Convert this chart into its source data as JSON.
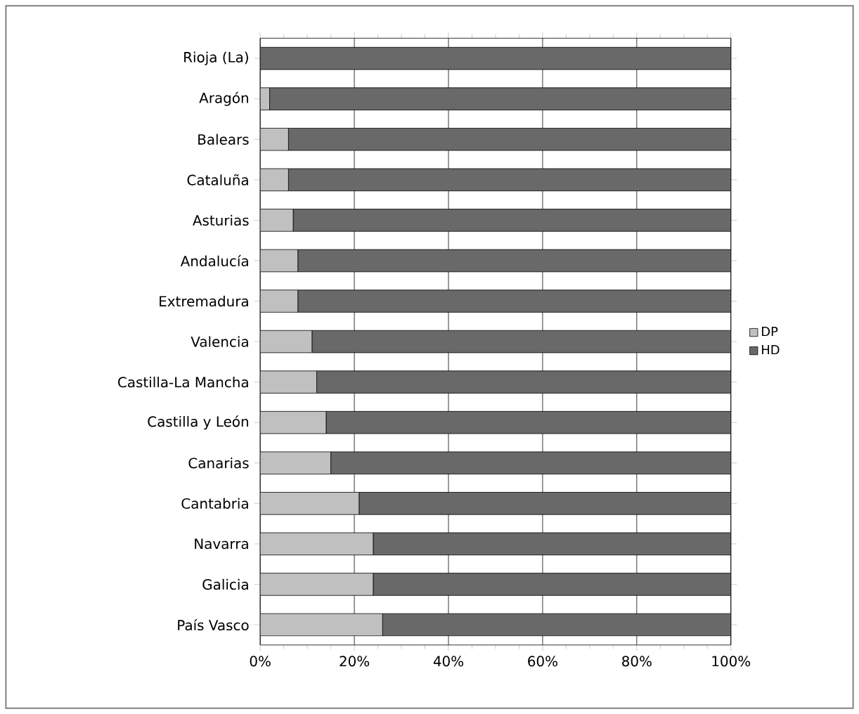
{
  "chart_data": {
    "type": "bar",
    "orientation": "horizontal",
    "stacked": true,
    "categories": [
      "Rioja (La)",
      "Aragón",
      "Balears",
      "Cataluña",
      "Asturias",
      "Andalucía",
      "Extremadura",
      "Valencia",
      "Castilla-La Mancha",
      "Castilla y León",
      "Canarias",
      "Cantabria",
      "Navarra",
      "Galicia",
      "País Vasco"
    ],
    "series": [
      {
        "name": "DP",
        "color": "#c0c0c0",
        "values": [
          0,
          2,
          6,
          6,
          7,
          8,
          8,
          11,
          12,
          14,
          15,
          21,
          24,
          24,
          26
        ]
      },
      {
        "name": "HD",
        "color": "#696969",
        "values": [
          100,
          98,
          94,
          94,
          93,
          92,
          92,
          89,
          88,
          86,
          85,
          79,
          76,
          76,
          74
        ]
      }
    ],
    "xlim": [
      0,
      100
    ],
    "xticks": [
      {
        "value": 0,
        "label": "0%"
      },
      {
        "value": 20,
        "label": "20%"
      },
      {
        "value": 40,
        "label": "40%"
      },
      {
        "value": 60,
        "label": "60%"
      },
      {
        "value": 80,
        "label": "80%"
      },
      {
        "value": 100,
        "label": "100%"
      }
    ],
    "grid": "x",
    "legend": "right"
  }
}
